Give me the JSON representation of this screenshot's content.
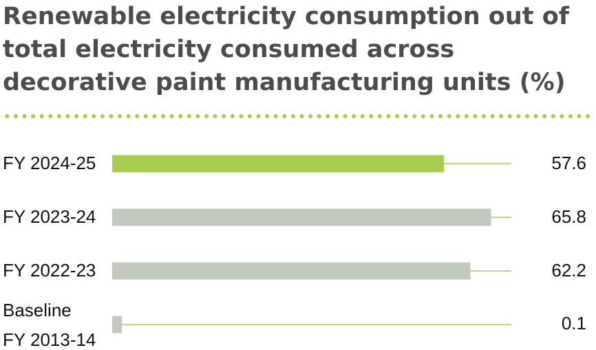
{
  "chart_data": {
    "type": "bar",
    "orientation": "horizontal",
    "title": "Renewable electricity consumption out of total electricity consumed across decorative paint manufacturing units (%)",
    "categories": [
      "FY 2024-25",
      "FY 2023-24",
      "FY 2022-23",
      "Baseline FY 2013-14"
    ],
    "category_lines": [
      [
        "FY 2024-25"
      ],
      [
        "FY 2023-24"
      ],
      [
        "FY 2022-23"
      ],
      [
        "Baseline",
        "FY 2013-14"
      ]
    ],
    "values": [
      57.6,
      65.8,
      62.2,
      0.1
    ],
    "value_labels": [
      "57.6",
      "65.8",
      "62.2",
      "0.1"
    ],
    "xlim": [
      0,
      70
    ],
    "colors": [
      "#a8cc50",
      "#c2c9bf",
      "#c2c9bf",
      "#c2c9bf"
    ],
    "track_color": "#a8cc50",
    "divider_color": "#a8cc50",
    "xlabel": "",
    "ylabel": "",
    "grid": false
  }
}
